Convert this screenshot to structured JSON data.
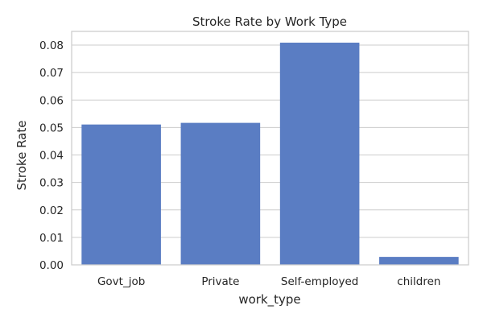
{
  "chart_data": {
    "type": "bar",
    "title": "Stroke Rate by Work Type",
    "xlabel": "work_type",
    "ylabel": "Stroke Rate",
    "categories": [
      "Govt_job",
      "Private",
      "Self-employed",
      "children"
    ],
    "values": [
      0.0511,
      0.0517,
      0.0809,
      0.0029
    ],
    "ylim": [
      0,
      0.085
    ],
    "yticks": [
      0.0,
      0.01,
      0.02,
      0.03,
      0.04,
      0.05,
      0.06,
      0.07,
      0.08
    ],
    "ytick_labels": [
      "0.00",
      "0.01",
      "0.02",
      "0.03",
      "0.04",
      "0.05",
      "0.06",
      "0.07",
      "0.08"
    ],
    "bar_color": "#5a7dc3",
    "grid": true,
    "legend": "none"
  }
}
